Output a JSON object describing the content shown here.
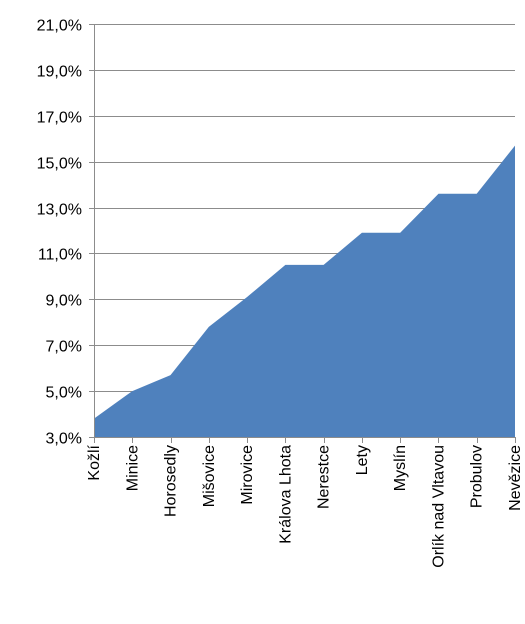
{
  "chart_data": {
    "type": "area",
    "title": "",
    "xlabel": "",
    "ylabel": "",
    "categories": [
      "Kožlí",
      "Minice",
      "Horosedly",
      "Mišovice",
      "Mirovice",
      "Králova Lhota",
      "Nerestce",
      "Lety",
      "Myslín",
      "Orlík nad Vltavou",
      "Probulov",
      "Nevězice"
    ],
    "series": [
      {
        "values": [
          3.8,
          5.0,
          5.7,
          7.8,
          9.1,
          10.5,
          10.5,
          11.9,
          11.9,
          13.6,
          13.6,
          15.7
        ]
      }
    ],
    "ylim": [
      3,
      21
    ],
    "yticks": [
      3,
      5,
      7,
      9,
      11,
      13,
      15,
      17,
      19,
      21
    ],
    "ytick_labels": [
      "3,0%",
      "5,0%",
      "7,0%",
      "9,0%",
      "11,0%",
      "13,0%",
      "15,0%",
      "17,0%",
      "19,0%",
      "21,0%"
    ],
    "grid": true,
    "legend": "none",
    "colors": {
      "fill": "#4f81bd",
      "grid": "#8c8c8c",
      "text": "#000000"
    }
  }
}
